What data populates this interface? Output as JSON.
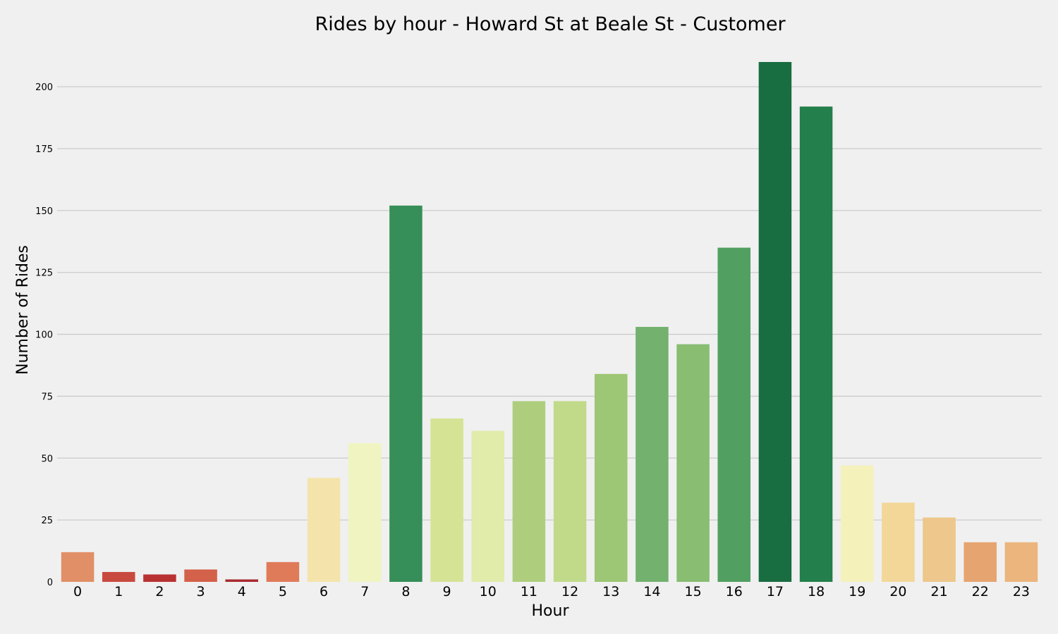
{
  "chart_data": {
    "type": "bar",
    "title": "Rides by hour - Howard St at Beale St - Customer",
    "xlabel": "Hour",
    "ylabel": "Number of Rides",
    "categories": [
      "0",
      "1",
      "2",
      "3",
      "4",
      "5",
      "6",
      "7",
      "8",
      "9",
      "10",
      "11",
      "12",
      "13",
      "14",
      "15",
      "16",
      "17",
      "18",
      "19",
      "20",
      "21",
      "22",
      "23"
    ],
    "values": [
      12,
      4,
      3,
      5,
      1,
      8,
      42,
      56,
      152,
      66,
      61,
      73,
      73,
      84,
      103,
      96,
      135,
      210,
      192,
      47,
      32,
      26,
      16,
      16
    ],
    "colors": [
      "#e18f66",
      "#c84a3f",
      "#b93232",
      "#d4614a",
      "#a82b2f",
      "#e07b5a",
      "#f4e4ab",
      "#f0f4c1",
      "#368f58",
      "#d5e395",
      "#e1ebaa",
      "#aece7d",
      "#c1da89",
      "#9dc675",
      "#73b16e",
      "#88bd72",
      "#52a061",
      "#186d41",
      "#237f4b",
      "#f4f1bb",
      "#f2d798",
      "#edc78b",
      "#e6a470",
      "#ebb57d"
    ],
    "yticks": [
      0,
      25,
      50,
      75,
      100,
      125,
      150,
      175,
      200
    ],
    "ylim": [
      0,
      210
    ],
    "grid": "horizontal",
    "legend": "none"
  }
}
